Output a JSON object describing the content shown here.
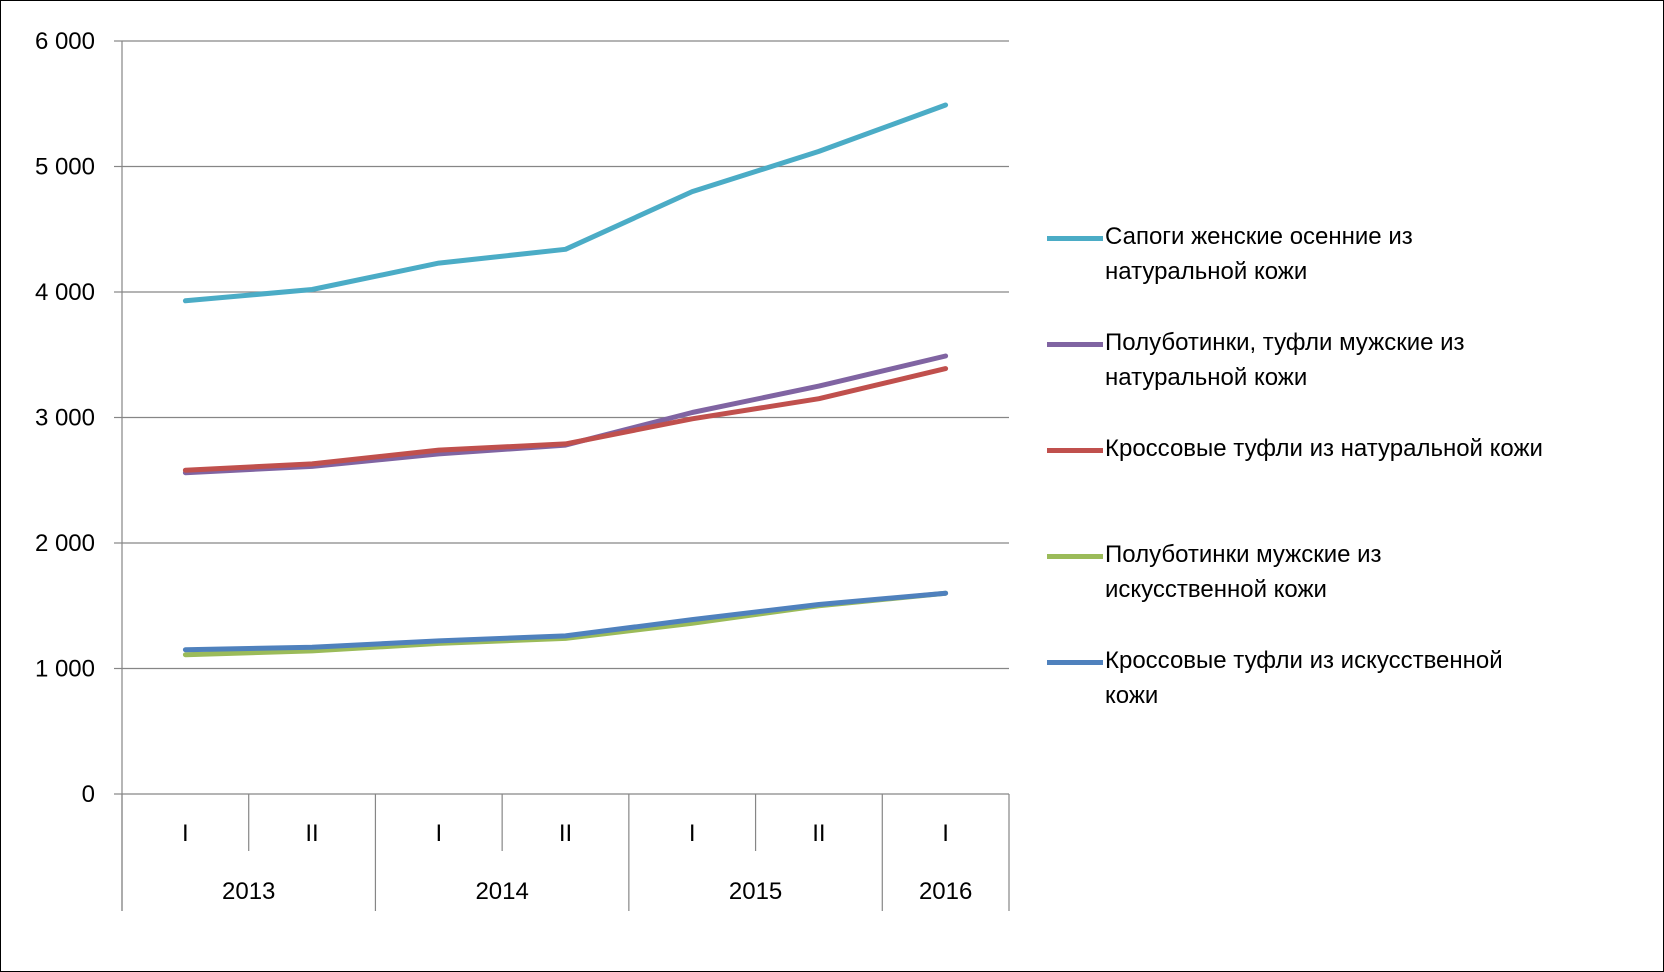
{
  "chart_data": {
    "type": "line",
    "title": "",
    "xlabel": "",
    "ylabel": "",
    "ylim": [
      0,
      6000
    ],
    "yticks": [
      0,
      1000,
      2000,
      3000,
      4000,
      5000,
      6000
    ],
    "ytick_labels": [
      "0",
      "1 000",
      "2 000",
      "3 000",
      "4 000",
      "5 000",
      "6 000"
    ],
    "categories": [
      "I",
      "II",
      "I",
      "II",
      "I",
      "II",
      "I"
    ],
    "category_groups": [
      {
        "label": "2013",
        "span": 2
      },
      {
        "label": "2014",
        "span": 2
      },
      {
        "label": "2015",
        "span": 2
      },
      {
        "label": "2016",
        "span": 1
      }
    ],
    "grid": true,
    "legend_position": "right",
    "series": [
      {
        "name": "Сапоги женские осенние из натуральной кожи",
        "color": "#4bacc6",
        "values": [
          3930,
          4020,
          4230,
          4340,
          4800,
          5120,
          5490
        ]
      },
      {
        "name": "Полуботинки, туфли мужские из натуральной кожи",
        "color": "#8064a2",
        "values": [
          2560,
          2610,
          2710,
          2780,
          3040,
          3250,
          3490
        ]
      },
      {
        "name": "Кроссовые туфли из натуральной кожи",
        "color": "#c0504d",
        "values": [
          2580,
          2630,
          2740,
          2790,
          2990,
          3150,
          3390
        ]
      },
      {
        "name": "Полуботинки мужские из искусственной кожи",
        "color": "#9bbb59",
        "values": [
          1110,
          1140,
          1200,
          1240,
          1360,
          1500,
          1600
        ]
      },
      {
        "name": "Кроссовые туфли из искусственной кожи",
        "color": "#4f81bd",
        "values": [
          1150,
          1170,
          1220,
          1260,
          1390,
          1510,
          1600
        ]
      }
    ]
  }
}
